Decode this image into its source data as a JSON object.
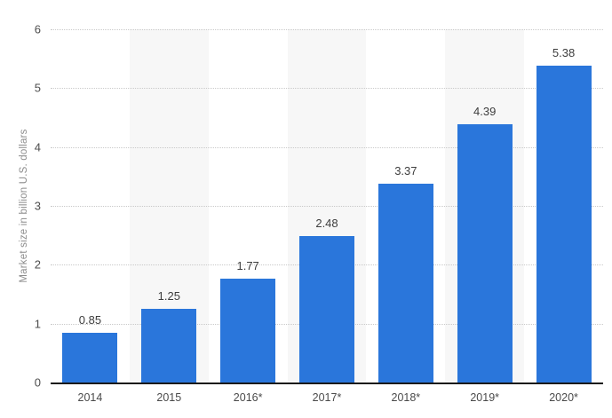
{
  "chart_data": {
    "type": "bar",
    "title": "",
    "xlabel": "",
    "ylabel": "Market size in billion U.S. dollars",
    "categories": [
      "2014",
      "2015",
      "2016*",
      "2017*",
      "2018*",
      "2019*",
      "2020*"
    ],
    "values": [
      0.85,
      1.25,
      1.77,
      2.48,
      3.37,
      4.39,
      5.38
    ],
    "value_labels": [
      "0.85",
      "1.25",
      "1.77",
      "2.48",
      "3.37",
      "4.39",
      "5.38"
    ],
    "ylim": [
      0,
      6
    ],
    "yticks": [
      "0",
      "1",
      "2",
      "3",
      "4",
      "5",
      "6"
    ],
    "grid": "horizontal-dotted",
    "legend": "none",
    "alt_band_columns": [
      1,
      3,
      5
    ],
    "colors": {
      "bar": "#2a76db",
      "alt_column_band": "#f7f7f7",
      "gridline": "#c9c9c9",
      "baseline": "#1a1a1a",
      "y_tick_label": "#4d4d4d",
      "x_tick_label": "#4a4a4a",
      "value_label": "#3d3d3d",
      "axis_title": "#8c8c8c",
      "background": "#ffffff"
    }
  }
}
